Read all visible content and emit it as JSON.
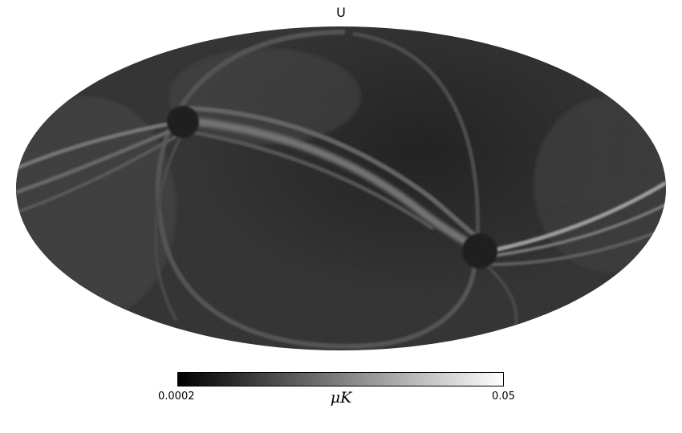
{
  "title": "U",
  "projection": "mollweide",
  "colormap": {
    "name": "grayscale",
    "colors": [
      "#000000",
      "#ffffff"
    ]
  },
  "colorbar": {
    "min_label": "0.0002",
    "max_label": "0.05",
    "unit_label": "μK"
  },
  "features": {
    "background_shade": "#1f1f1f",
    "pole_shade": "#0e0e0e",
    "streak_shade": "#6a6a6a",
    "bright_streak_shade": "#9a9a9a"
  }
}
